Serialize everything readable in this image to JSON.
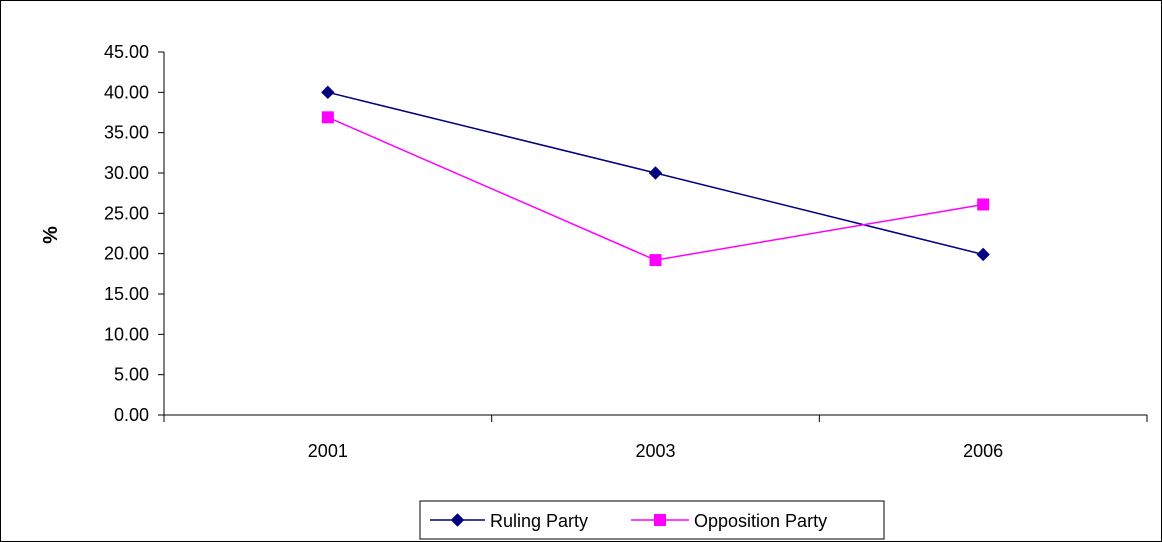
{
  "chart_data": {
    "type": "line",
    "title": "",
    "xlabel": "",
    "ylabel": "%",
    "categories": [
      "2001",
      "2003",
      "2006"
    ],
    "ylim": [
      0,
      45
    ],
    "yticks": [
      0,
      5,
      10,
      15,
      20,
      25,
      30,
      35,
      40,
      45
    ],
    "ytick_labels": [
      "0.00",
      "5.00",
      "10.00",
      "15.00",
      "20.00",
      "25.00",
      "30.00",
      "35.00",
      "40.00",
      "45.00"
    ],
    "grid": false,
    "legend_position": "bottom",
    "series": [
      {
        "name": "Ruling Party",
        "values": [
          40.0,
          30.0,
          19.9
        ],
        "color": "#000080",
        "marker": "diamond"
      },
      {
        "name": "Opposition Party",
        "values": [
          36.9,
          19.2,
          26.1
        ],
        "color": "#ff00ff",
        "marker": "square"
      }
    ]
  }
}
